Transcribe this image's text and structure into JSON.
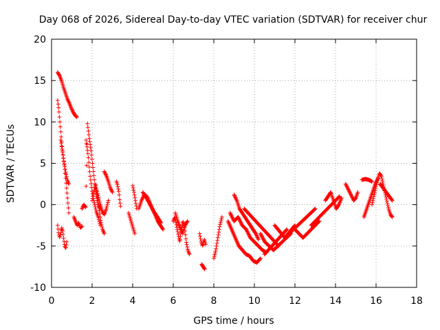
{
  "chart_data": {
    "type": "scatter",
    "title": "Day 068 of 2026, Sidereal Day-to-day VTEC variation (SDTVAR) for receiver chur",
    "xlabel": "GPS time / hours",
    "ylabel": "SDTVAR / TECUs",
    "xlim": [
      0,
      18
    ],
    "ylim": [
      -10,
      20
    ],
    "xticks": [
      "0",
      "2",
      "4",
      "6",
      "8",
      "10",
      "12",
      "14",
      "16",
      "18"
    ],
    "yticks": [
      "-10",
      "-5",
      "0",
      "5",
      "10",
      "15",
      "20"
    ],
    "grid": true,
    "marker": "+",
    "color": "#ff0000",
    "series": [
      {
        "name": "SDTVAR",
        "segments": [
          {
            "x0": 0.3,
            "x1": 1.25,
            "y": [
              16.0,
              15.6,
              15.0,
              14.2,
              13.5,
              12.8,
              12.3,
              11.7,
              11.2,
              10.8,
              10.6
            ]
          },
          {
            "x0": 0.3,
            "x1": 0.85,
            "y": [
              12.6,
              11.5,
              10.0,
              8.5,
              7.0,
              5.8,
              4.8,
              3.5,
              2.0,
              0.5,
              -1.0
            ]
          },
          {
            "x0": 0.3,
            "x1": 0.75,
            "y": [
              -2.5,
              -3.5,
              -4.0,
              -3.5,
              -2.8,
              -3.2,
              -4.2,
              -5.0,
              -5.3,
              -4.5
            ]
          },
          {
            "x0": 0.45,
            "x1": 0.85,
            "y": [
              7.8,
              6.5,
              5.2,
              4.0,
              3.0,
              2.5
            ]
          },
          {
            "x0": 1.1,
            "x1": 1.5,
            "y": [
              -1.5,
              -2.0,
              -2.5,
              -2.2,
              -2.8,
              -2.6
            ]
          },
          {
            "x0": 1.5,
            "x1": 2.4,
            "y": [
              -0.5,
              0.0,
              -0.3,
              9.8,
              8.0,
              6.5,
              4.5,
              2.5,
              1.0,
              0.0,
              -0.5
            ]
          },
          {
            "x0": 1.7,
            "x1": 2.4,
            "y": [
              7.8,
              6.0,
              3.5,
              1.5,
              0.3,
              -0.8,
              -1.5,
              -2.5
            ]
          },
          {
            "x0": 2.0,
            "x1": 2.6,
            "y": [
              0.5,
              1.5,
              2.5,
              1.0,
              -0.5,
              -2.0,
              -3.0,
              -3.5
            ]
          },
          {
            "x0": 2.2,
            "x1": 2.8,
            "y": [
              2.0,
              1.0,
              0.0,
              -0.8,
              -1.2,
              -0.5,
              0.5
            ]
          },
          {
            "x0": 2.6,
            "x1": 3.0,
            "y": [
              4.0,
              3.5,
              2.8,
              2.0,
              1.5
            ]
          },
          {
            "x0": 3.2,
            "x1": 3.4,
            "y": [
              2.8,
              2.5,
              2.0,
              1.5,
              0.5,
              -0.2
            ]
          },
          {
            "x0": 3.8,
            "x1": 4.1,
            "y": [
              -1.0,
              -1.5,
              -2.0,
              -2.5,
              -3.0,
              -3.5
            ]
          },
          {
            "x0": 4.0,
            "x1": 4.2,
            "y": [
              2.3,
              1.5,
              0.5,
              -0.5
            ]
          },
          {
            "x0": 4.3,
            "x1": 5.5,
            "y": [
              -0.5,
              0.5,
              1.2,
              1.0,
              0.3,
              -0.5,
              -1.2,
              -2.0,
              -2.5,
              -3.0
            ]
          },
          {
            "x0": 4.5,
            "x1": 5.4,
            "y": [
              1.5,
              0.8,
              0.0,
              -0.8,
              -1.5,
              -2.2
            ]
          },
          {
            "x0": 6.0,
            "x1": 6.8,
            "y": [
              -2.0,
              -1.5,
              -2.5,
              -3.5,
              -4.5,
              -3.0,
              -2.0,
              -2.8,
              -4.5,
              -5.5,
              -6.0
            ]
          },
          {
            "x0": 6.1,
            "x1": 6.7,
            "y": [
              -1.0,
              -2.0,
              -2.8,
              -3.5,
              -2.5,
              -2.0
            ]
          },
          {
            "x0": 7.3,
            "x1": 7.6,
            "y": [
              -3.5,
              -4.5,
              -5.0,
              -4.2,
              -4.8
            ]
          },
          {
            "x0": 7.4,
            "x1": 7.55,
            "y": [
              -7.2,
              -7.8
            ]
          },
          {
            "x0": 8.0,
            "x1": 8.4,
            "y": [
              -6.5,
              -5.5,
              -4.0,
              -2.5,
              -1.5
            ]
          },
          {
            "x0": 8.7,
            "x1": 10.3,
            "y": [
              -2.0,
              -3.0,
              -4.0,
              -5.0,
              -5.5,
              -6.0,
              -6.2,
              -6.8,
              -7.0,
              -6.5
            ]
          },
          {
            "x0": 8.8,
            "x1": 10.6,
            "y": [
              -1.0,
              -2.0,
              -1.5,
              -2.5,
              -3.0,
              -4.0,
              -4.5,
              -5.0,
              -5.5,
              -5.8
            ]
          },
          {
            "x0": 9.0,
            "x1": 10.2,
            "y": [
              1.2,
              0.5,
              -0.5,
              -1.0,
              -1.5,
              -2.0,
              -2.5,
              -3.0,
              -3.5,
              -4.2
            ]
          },
          {
            "x0": 9.5,
            "x1": 11.2,
            "y": [
              -0.5,
              -1.0,
              -1.5,
              -2.0,
              -2.5,
              -3.0,
              -3.5,
              -4.0,
              -4.5,
              -5.0
            ]
          },
          {
            "x0": 10.3,
            "x1": 11.8,
            "y": [
              -3.5,
              -4.5,
              -5.0,
              -5.5,
              -5.0,
              -4.5,
              -4.0,
              -3.5
            ]
          },
          {
            "x0": 10.5,
            "x1": 11.6,
            "y": [
              -6.0,
              -5.5,
              -5.0,
              -4.5,
              -4.0,
              -3.5,
              -3.0
            ]
          },
          {
            "x0": 11.0,
            "x1": 12.0,
            "y": [
              -2.5,
              -3.0,
              -3.5,
              -4.0,
              -3.5,
              -3.0,
              -2.5
            ]
          },
          {
            "x0": 11.5,
            "x1": 13.0,
            "y": [
              -4.0,
              -3.5,
              -3.0,
              -2.5,
              -2.0,
              -1.5,
              -1.0,
              -0.5
            ]
          },
          {
            "x0": 12.0,
            "x1": 13.2,
            "y": [
              -3.0,
              -3.5,
              -4.0,
              -3.5,
              -3.0,
              -2.5,
              -2.0
            ]
          },
          {
            "x0": 12.8,
            "x1": 14.2,
            "y": [
              -2.5,
              -2.0,
              -1.5,
              -1.0,
              -0.5,
              0.0,
              0.5,
              1.0
            ]
          },
          {
            "x0": 13.5,
            "x1": 14.3,
            "y": [
              0.5,
              1.0,
              1.5,
              0.5,
              -0.5,
              0.0,
              0.8
            ]
          },
          {
            "x0": 14.5,
            "x1": 15.1,
            "y": [
              2.5,
              2.0,
              1.5,
              1.0,
              0.5,
              0.8,
              1.5
            ]
          },
          {
            "x0": 15.3,
            "x1": 15.8,
            "y": [
              3.0,
              3.1,
              3.0,
              2.8
            ]
          },
          {
            "x0": 15.4,
            "x1": 16.1,
            "y": [
              -1.5,
              -0.5,
              0.5,
              1.5,
              2.5,
              3.2
            ]
          },
          {
            "x0": 15.8,
            "x1": 16.8,
            "y": [
              0.0,
              1.0,
              2.0,
              3.0,
              3.8,
              3.5,
              2.5,
              1.5,
              0.5,
              -0.5,
              -1.2,
              -1.5
            ]
          },
          {
            "x0": 16.2,
            "x1": 16.8,
            "y": [
              2.5,
              2.0,
              1.5,
              1.0,
              0.5
            ]
          }
        ]
      }
    ]
  }
}
